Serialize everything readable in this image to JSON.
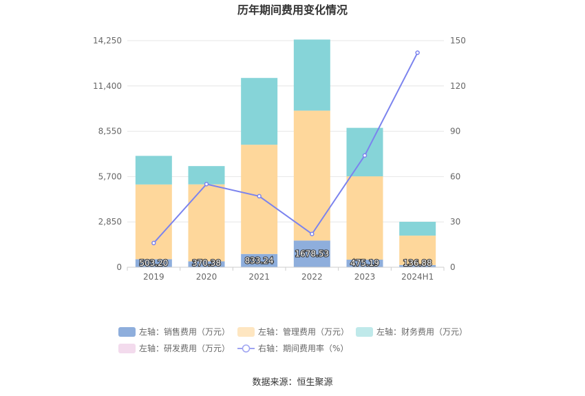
{
  "chart_data": {
    "type": "bar",
    "title": "历年期间费用变化情况",
    "categories": [
      "2019",
      "2020",
      "2021",
      "2022",
      "2023",
      "2024H1"
    ],
    "left_axis": {
      "ticks": [
        "0",
        "2,850",
        "5,700",
        "8,550",
        "11,400",
        "14,250"
      ],
      "range": [
        0,
        14250
      ]
    },
    "right_axis": {
      "ticks": [
        "0",
        "30",
        "60",
        "90",
        "120",
        "150"
      ],
      "range": [
        0,
        150
      ]
    },
    "stack_series": [
      {
        "name": "左轴：销售费用（万元）",
        "color": "#8eaedc",
        "values": [
          503.2,
          370.38,
          833.24,
          1678.53,
          475.19,
          136.88
        ],
        "labels": [
          "503.20",
          "370.38",
          "833.24",
          "1678.53",
          "475.19",
          "136.88"
        ]
      },
      {
        "name": "左轴：管理费用（万元）",
        "color": "#fed79b",
        "values": [
          4700,
          4840,
          6870,
          8170,
          5240,
          1850
        ]
      },
      {
        "name": "左轴：财务费用（万元）",
        "color": "#86d4d8",
        "values": [
          1800,
          1150,
          4200,
          4470,
          3050,
          870
        ]
      }
    ],
    "empty_series": {
      "name": "左轴：研发费用（万元）",
      "color": "#f3dbed"
    },
    "line_series": {
      "name": "右轴：期间费用率（%）",
      "color": "#7b83ee",
      "values": [
        16,
        55,
        47,
        22,
        74,
        142
      ]
    },
    "legend_position": "bottom",
    "source": "数据来源：恒生聚源",
    "legend_colors": {
      "sales": "#8eaedc",
      "mgmt": "#fed79b",
      "fin": "#86d4d8",
      "rd": "#f3dbed",
      "rate": "#7b83ee"
    }
  }
}
